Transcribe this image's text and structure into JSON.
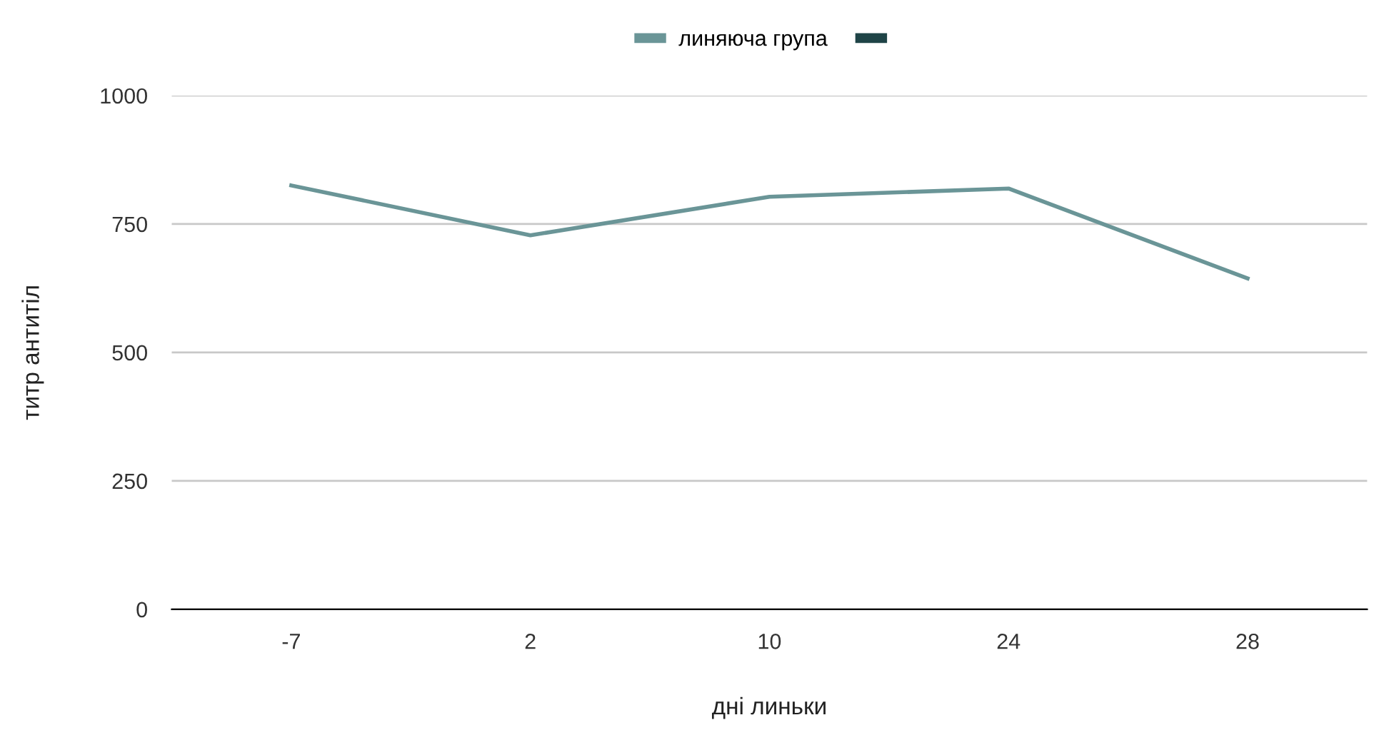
{
  "chart_data": {
    "type": "line",
    "xlabel": "дні линьки",
    "ylabel": "титр антитіл",
    "categories": [
      "-7",
      "2",
      "10",
      "24",
      "28"
    ],
    "series": [
      {
        "name": "линяюча група",
        "color": "#6a9597",
        "values": [
          825,
          728,
          803,
          819,
          644
        ]
      },
      {
        "color": "#1f4447",
        "values": [
          null,
          null,
          null,
          null,
          null
        ]
      }
    ],
    "ylim": [
      0,
      1000
    ],
    "yticks": [
      0,
      250,
      500,
      750,
      1000
    ],
    "grid": "y",
    "legend": "top",
    "marker": "none",
    "line_style": "solid"
  }
}
